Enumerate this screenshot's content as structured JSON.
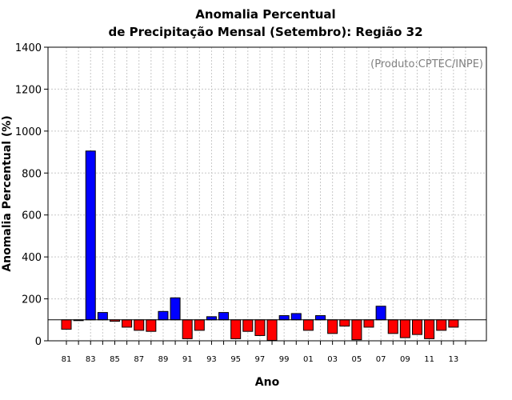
{
  "chart_data": {
    "type": "bar",
    "title_line1": "Anomalia Percentual",
    "title_line2": "de Precipitação Mensal (Setembro): Região 32",
    "xlabel": "Ano",
    "ylabel": "Anomalia Percentual (%)",
    "annotation": "(Produto:CPTEC/INPE)",
    "ylim": [
      0,
      1400
    ],
    "yticks": [
      0,
      200,
      400,
      600,
      800,
      1000,
      1200,
      1400
    ],
    "baseline": 100,
    "grid": true,
    "colors": {
      "above": "#0000ff",
      "below": "#ff0000",
      "grid": "#c8c8c8"
    },
    "categories": [
      "81",
      "82",
      "83",
      "84",
      "85",
      "86",
      "87",
      "88",
      "89",
      "90",
      "91",
      "92",
      "93",
      "94",
      "95",
      "96",
      "97",
      "98",
      "99",
      "00",
      "01",
      "02",
      "03",
      "04",
      "05",
      "06",
      "07",
      "08",
      "09",
      "10",
      "11",
      "12",
      "13",
      "14"
    ],
    "xtick_labels": [
      "81",
      "83",
      "85",
      "87",
      "89",
      "91",
      "93",
      "95",
      "97",
      "99",
      "01",
      "03",
      "05",
      "07",
      "09",
      "11",
      "13"
    ],
    "values": [
      55,
      97,
      905,
      135,
      93,
      65,
      50,
      45,
      140,
      205,
      10,
      50,
      115,
      135,
      10,
      45,
      25,
      2,
      120,
      130,
      50,
      120,
      35,
      70,
      5,
      65,
      165,
      35,
      15,
      30,
      10,
      50,
      65,
      null
    ]
  }
}
